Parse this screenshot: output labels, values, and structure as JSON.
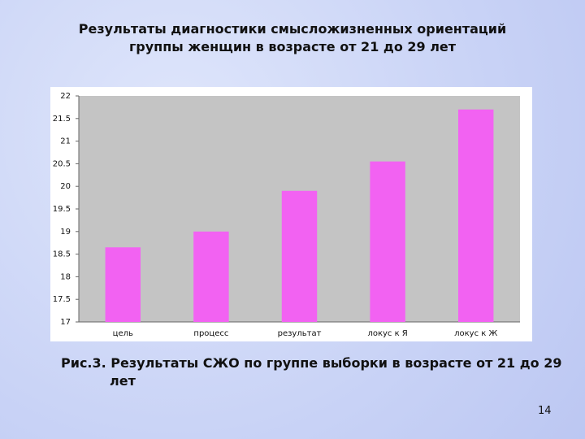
{
  "header": {
    "title": [
      "Результаты диагностики смысложизненных  ориентаций",
      "группы женщин в возрасте от 21 до 29 лет"
    ]
  },
  "chart_data": {
    "type": "bar",
    "categories": [
      "цель",
      "процесс",
      "результат",
      "локус к Я",
      "локус к Ж"
    ],
    "values": [
      18.65,
      19.0,
      19.9,
      20.55,
      21.7
    ],
    "color": "#f262f2",
    "ylim": [
      17,
      22
    ],
    "yticks": [
      17,
      17.5,
      18,
      18.5,
      19,
      19.5,
      20,
      20.5,
      21,
      21.5,
      22
    ],
    "grid": false
  },
  "caption": "Рис.3. Результаты СЖО по группе выборки в возрасте от 21 до 29 лет",
  "page_number": "14"
}
